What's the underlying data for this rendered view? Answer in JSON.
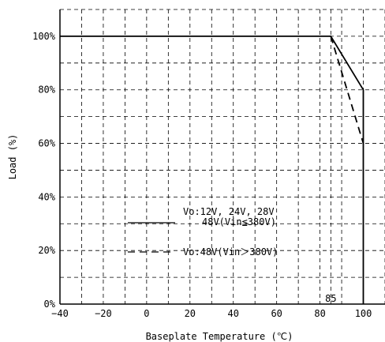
{
  "chart_data": {
    "type": "line",
    "xlabel": "Baseplate Temperature (℃)",
    "ylabel": "Load (%)",
    "xlim": [
      -40,
      110
    ],
    "ylim": [
      0,
      110
    ],
    "x_ticks": [
      -40,
      -20,
      0,
      20,
      40,
      60,
      80,
      100
    ],
    "x_tick_labels": [
      "−40",
      "−20",
      "0",
      "20",
      "40",
      "60",
      "80",
      "100"
    ],
    "y_ticks": [
      0,
      20,
      40,
      60,
      80,
      100
    ],
    "y_tick_labels": [
      "0%",
      "20%",
      "40%",
      "60%",
      "80%",
      "100%"
    ],
    "x_gridlines": [
      -30,
      -10,
      10,
      30,
      50,
      70,
      85,
      90,
      110
    ],
    "y_gridlines": [
      10,
      30,
      50,
      70,
      90,
      110
    ],
    "grid": true,
    "legend_position": "center-left",
    "series": [
      {
        "name": "Vo:12V, 24V, 28V 48V(Vin≦380V)",
        "legend_lines": [
          "Vo:12V, 24V, 28V",
          "48V(Vin≦380V)"
        ],
        "style": "solid",
        "color": "#000000",
        "x": [
          -40,
          85,
          100,
          100
        ],
        "y": [
          100,
          100,
          80,
          0
        ]
      },
      {
        "name": "Vo:48V(Vin＞380V)",
        "legend_lines": [
          "Vo:48V(Vin＞380V)"
        ],
        "style": "dashed",
        "color": "#000000",
        "x": [
          85,
          100
        ],
        "y": [
          100,
          60
        ]
      }
    ],
    "annotations": [
      {
        "text": "85",
        "x": 85,
        "y": 0
      }
    ]
  }
}
